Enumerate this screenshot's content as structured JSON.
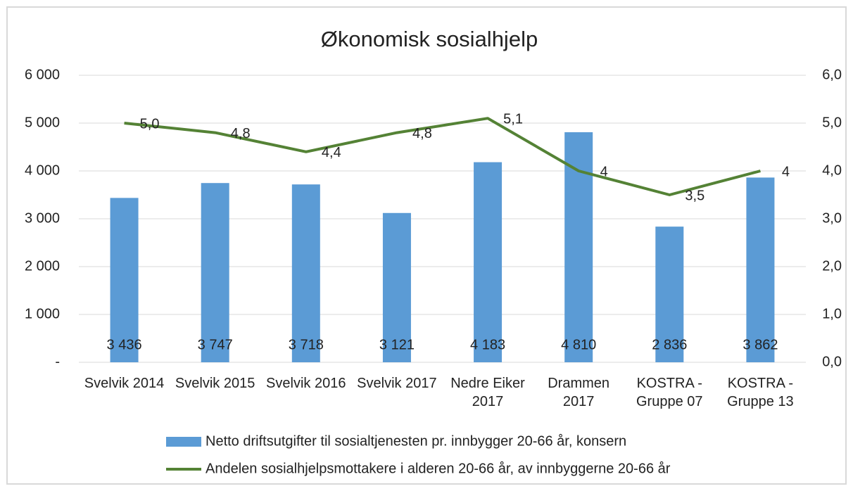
{
  "chart_data": {
    "type": "bar",
    "title": "Økonomisk sosialhjelp",
    "categories": [
      "Svelvik 2014",
      "Svelvik 2015",
      "Svelvik 2016",
      "Svelvik 2017",
      "Nedre Eiker\n2017",
      "Drammen\n2017",
      "KOSTRA -\nGruppe 07",
      "KOSTRA -\nGruppe 13"
    ],
    "series": [
      {
        "name": "Netto driftsutgifter til sosialtjenesten pr. innbygger 20-66 år, konsern",
        "type": "bar",
        "color": "#5b9bd5",
        "values": [
          3436,
          3747,
          3718,
          3121,
          4183,
          4810,
          2836,
          3862
        ],
        "value_labels": [
          "3 436",
          "3 747",
          "3 718",
          "3 121",
          "4 183",
          "4 810",
          "2 836",
          "3 862"
        ]
      },
      {
        "name": "Andelen sosialhjelpsmottakere i alderen 20-66 år, av innbyggerne 20-66 år",
        "type": "line",
        "axis": "y2",
        "color": "#548235",
        "values": [
          5.0,
          4.8,
          4.4,
          4.8,
          5.1,
          4,
          3.5,
          4
        ],
        "value_labels": [
          "5,0",
          "4,8",
          "4,4",
          "4,8",
          "5,1",
          "4",
          "3,5",
          "4"
        ]
      }
    ],
    "ylim": [
      0,
      6000
    ],
    "yticks": [
      {
        "value": 0,
        "label": "-"
      },
      {
        "value": 1000,
        "label": "1 000"
      },
      {
        "value": 2000,
        "label": "2 000"
      },
      {
        "value": 3000,
        "label": "3 000"
      },
      {
        "value": 4000,
        "label": "4 000"
      },
      {
        "value": 5000,
        "label": "5 000"
      },
      {
        "value": 6000,
        "label": "6 000"
      }
    ],
    "y2lim": [
      0,
      6
    ],
    "y2ticks": [
      {
        "value": 0,
        "label": "0,0"
      },
      {
        "value": 1,
        "label": "1,0"
      },
      {
        "value": 2,
        "label": "2,0"
      },
      {
        "value": 3,
        "label": "3,0"
      },
      {
        "value": 4,
        "label": "4,0"
      },
      {
        "value": 5,
        "label": "5,0"
      },
      {
        "value": 6,
        "label": "6,0"
      }
    ],
    "grid": true,
    "legend": "bottom"
  }
}
